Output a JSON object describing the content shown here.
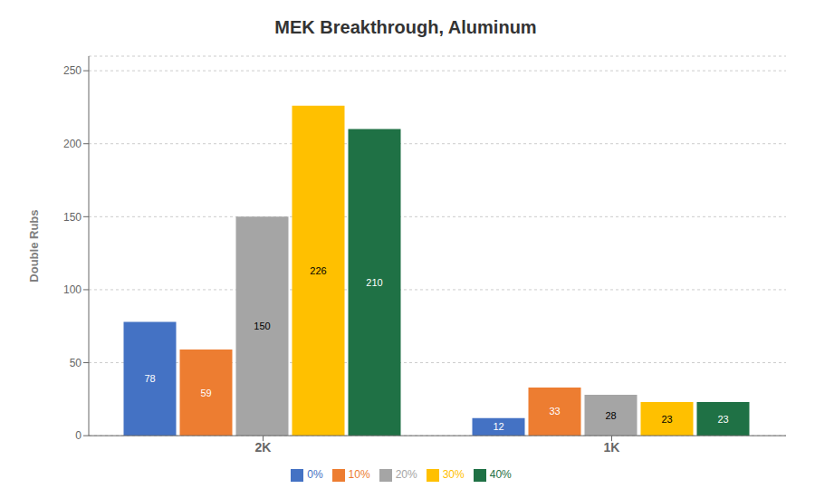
{
  "chart_data": {
    "type": "bar",
    "title": "MEK Breakthrough, Aluminum",
    "ylabel": "Double Rubs",
    "categories": [
      "2K",
      "1K"
    ],
    "series": [
      {
        "name": "0%",
        "color": "#4472C4",
        "values": [
          78,
          12
        ]
      },
      {
        "name": "10%",
        "color": "#ED7D31",
        "values": [
          59,
          33
        ]
      },
      {
        "name": "20%",
        "color": "#A5A5A5",
        "values": [
          150,
          28
        ]
      },
      {
        "name": "30%",
        "color": "#FFC000",
        "values": [
          226,
          23
        ]
      },
      {
        "name": "40%",
        "color": "#1F7145",
        "values": [
          210,
          23
        ]
      }
    ],
    "ylim": [
      0,
      260
    ],
    "yticks": [
      0,
      50,
      100,
      150,
      200,
      250
    ],
    "grid": true,
    "legend": "bottom",
    "data_labels": true
  }
}
